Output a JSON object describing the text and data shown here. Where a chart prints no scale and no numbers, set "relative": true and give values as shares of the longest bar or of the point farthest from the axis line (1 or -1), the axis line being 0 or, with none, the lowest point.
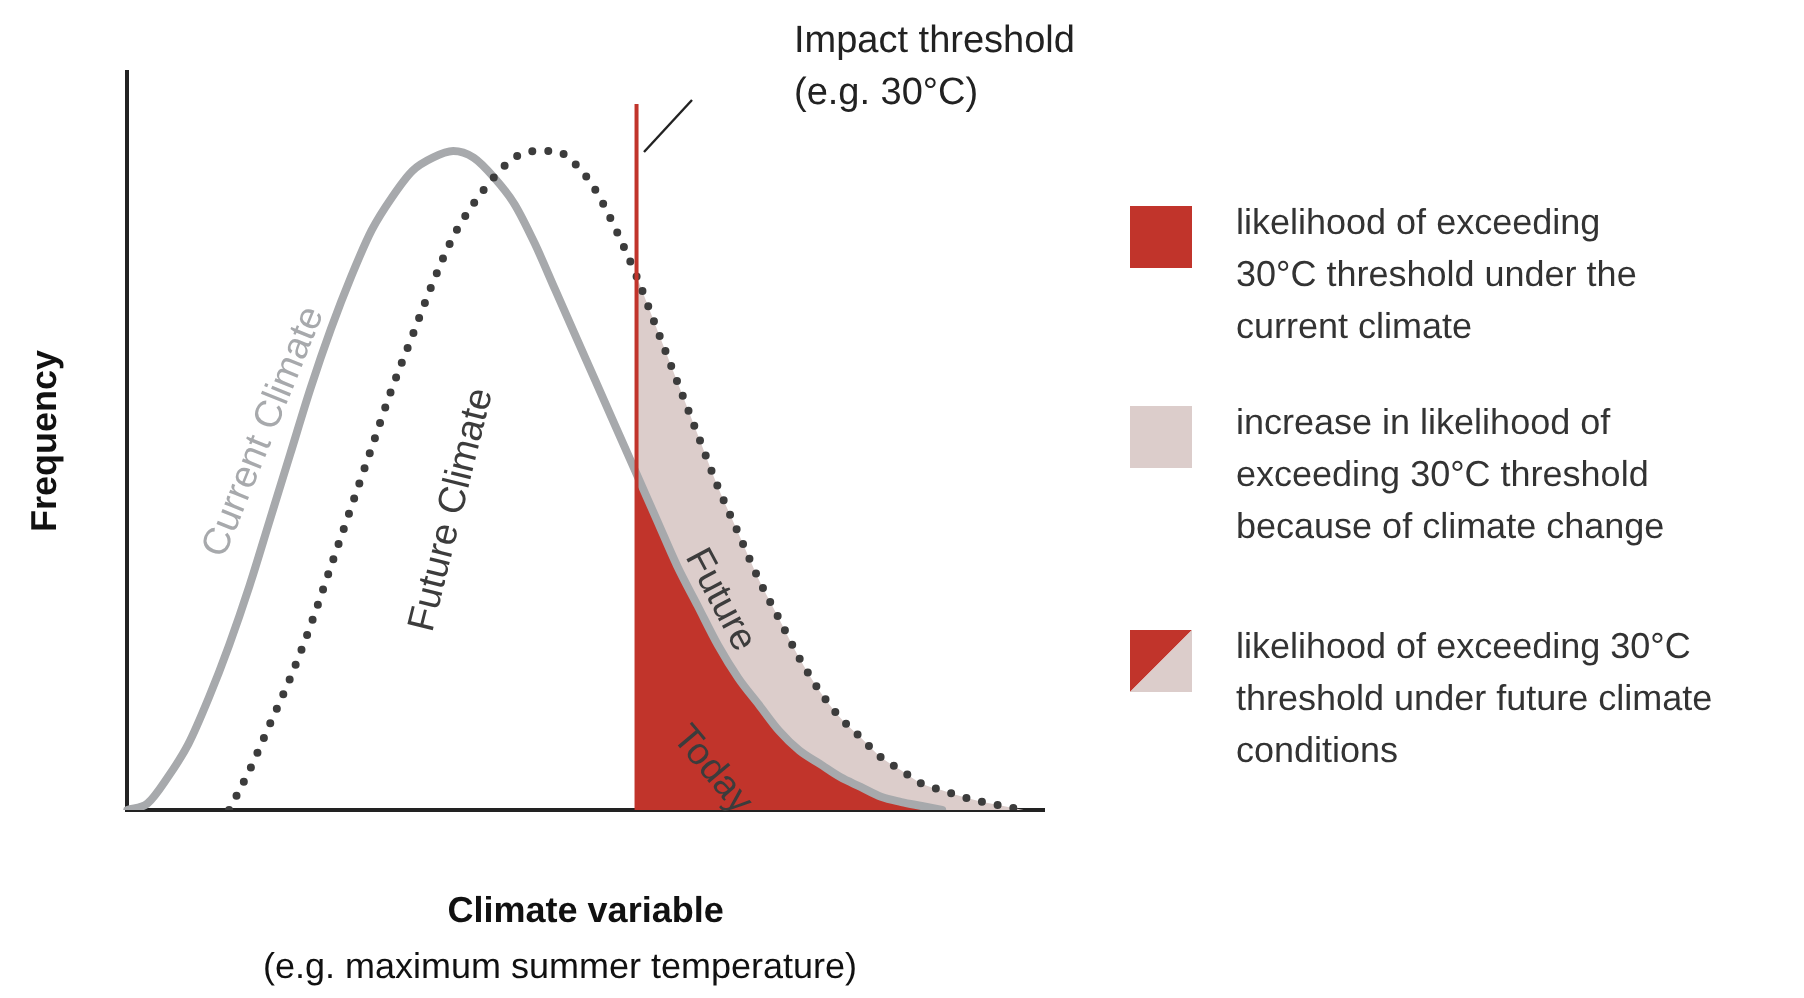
{
  "chart_data": {
    "type": "line",
    "relative": true,
    "xlabel": "Climate variable",
    "ylabel": "Frequency",
    "categories": [
      null,
      null,
      null,
      null,
      null,
      null,
      null,
      null,
      null,
      null,
      null,
      null,
      null,
      null,
      null,
      null,
      null,
      null,
      null,
      null,
      null,
      null,
      null,
      null,
      null,
      null,
      null,
      null,
      null,
      null,
      null,
      null,
      null,
      null,
      null,
      null,
      null,
      null,
      null,
      null,
      null,
      null,
      null,
      null,
      null,
      null
    ],
    "series": [
      {
        "name": "Future",
        "type": "area",
        "color": "#dccdcb",
        "values": [
          null,
          null,
          null,
          null,
          null,
          null,
          null,
          null,
          null,
          null,
          null,
          null,
          null,
          null,
          null,
          null,
          null,
          null,
          null,
          null,
          null,
          null,
          null,
          null,
          null,
          0.81,
          0.73,
          0.65,
          0.57,
          0.49,
          0.42,
          0.35,
          0.29,
          0.23,
          0.18,
          0.14,
          0.11,
          0.08,
          0.06,
          0.04,
          0.03,
          0.02,
          0.012,
          0.006,
          0,
          null
        ]
      },
      {
        "name": "Today",
        "type": "area",
        "color": "#c1342b",
        "values": [
          null,
          null,
          null,
          null,
          null,
          null,
          null,
          null,
          null,
          null,
          null,
          null,
          null,
          null,
          null,
          null,
          null,
          null,
          null,
          null,
          null,
          null,
          null,
          null,
          null,
          0.51,
          0.44,
          0.37,
          0.31,
          0.25,
          0.2,
          0.16,
          0.12,
          0.09,
          0.07,
          0.05,
          0.035,
          0.02,
          0.012,
          0.006,
          0,
          null,
          null,
          null,
          null,
          null
        ]
      },
      {
        "name": "Current Climate",
        "type": "line",
        "color": "#a7a9ac",
        "line_style": "solid",
        "values": [
          0,
          0.01,
          0.05,
          0.1,
          0.17,
          0.25,
          0.34,
          0.44,
          0.54,
          0.64,
          0.73,
          0.81,
          0.88,
          0.93,
          0.97,
          0.99,
          1,
          0.99,
          0.96,
          0.92,
          0.86,
          0.79,
          0.72,
          0.65,
          0.58,
          0.51,
          0.44,
          0.37,
          0.31,
          0.25,
          0.2,
          0.16,
          0.12,
          0.09,
          0.07,
          0.05,
          0.035,
          0.02,
          0.012,
          0.006,
          0,
          null,
          null,
          null,
          null,
          null
        ]
      },
      {
        "name": "Future Climate",
        "type": "line",
        "color": "#3c3c3c",
        "line_style": "dotted",
        "values": [
          null,
          null,
          null,
          null,
          null,
          0,
          0.06,
          0.13,
          0.2,
          0.28,
          0.37,
          0.46,
          0.55,
          0.64,
          0.72,
          0.8,
          0.87,
          0.92,
          0.96,
          0.99,
          1,
          1,
          0.98,
          0.94,
          0.88,
          0.81,
          0.73,
          0.65,
          0.57,
          0.49,
          0.42,
          0.35,
          0.29,
          0.23,
          0.18,
          0.14,
          0.11,
          0.08,
          0.06,
          0.04,
          0.03,
          0.02,
          0.012,
          0.006,
          0,
          null
        ]
      }
    ],
    "annotations": [
      "likelihood of exceeding 30°C threshold under the current climate",
      "increase in likelihood of exceeding 30°C  threshold because of climate change",
      "likelihood of exceeding 30°C threshold under future climate conditions",
      "(e.g. maximum summer temperature)",
      "Impact threshold (e.g. 30°C)"
    ],
    "grid": false,
    "legend": false,
    "marker": "none"
  }
}
